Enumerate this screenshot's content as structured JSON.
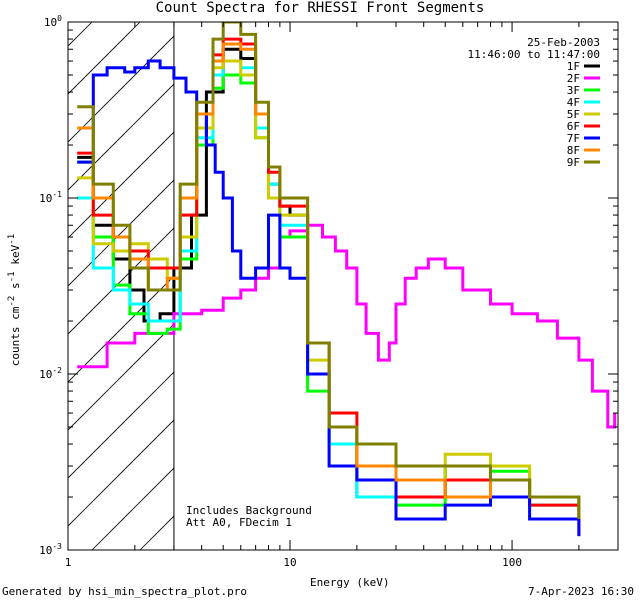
{
  "footer": {
    "generator": "Generated by hsi_min_spectra_plot.pro",
    "timestamp": "7-Apr-2023 16:30"
  },
  "chart_data": {
    "type": "line",
    "title": "Count Spectra for RHESSI Front Segments",
    "date": "25-Feb-2003",
    "time_range": "11:46:00 to 11:47:00",
    "xlabel": "Energy (keV)",
    "ylabel": "counts cm^-2 s^-1 keV^-1",
    "xscale": "log",
    "yscale": "log",
    "xlim": [
      1,
      300
    ],
    "ylim": [
      0.001,
      1
    ],
    "xticks": [
      {
        "v": 1,
        "label": "1"
      },
      {
        "v": 10,
        "label": "10"
      },
      {
        "v": 100,
        "label": "100"
      }
    ],
    "yticks": [
      {
        "v": 0.001,
        "label": "10^-3"
      },
      {
        "v": 0.01,
        "label": "10^-2"
      },
      {
        "v": 0.1,
        "label": "10^-1"
      },
      {
        "v": 1,
        "label": "10^0"
      }
    ],
    "shaded_region": {
      "from": 1,
      "to": 3,
      "style": "hatched"
    },
    "notes": [
      "Includes Background",
      "Att A0, FDecim 1"
    ],
    "legend_position": "top-right",
    "series": [
      {
        "name": "1F",
        "color": "#000000",
        "points": [
          [
            1.1,
            0.17
          ],
          [
            1.3,
            0.07
          ],
          [
            1.6,
            0.045
          ],
          [
            1.9,
            0.03
          ],
          [
            2.2,
            0.02
          ],
          [
            2.6,
            0.022
          ],
          [
            3.0,
            0.04
          ],
          [
            3.6,
            0.08
          ],
          [
            4.2,
            0.4
          ],
          [
            5,
            0.7
          ],
          [
            6,
            0.62
          ],
          [
            7,
            0.3
          ],
          [
            8,
            0.12
          ],
          [
            9,
            0.09
          ],
          [
            10,
            0.08
          ],
          [
            12,
            0.015
          ],
          [
            15,
            0.005
          ],
          [
            20,
            0.002
          ],
          [
            30,
            0.003
          ],
          [
            50,
            0.002
          ],
          [
            80,
            0.0025
          ],
          [
            120,
            0.002
          ],
          [
            200,
            0.0015
          ]
        ]
      },
      {
        "name": "2F",
        "color": "#ff00ff",
        "points": [
          [
            1.1,
            0.011
          ],
          [
            1.3,
            0.011
          ],
          [
            1.5,
            0.015
          ],
          [
            2,
            0.017
          ],
          [
            3,
            0.022
          ],
          [
            4,
            0.023
          ],
          [
            5,
            0.027
          ],
          [
            6,
            0.03
          ],
          [
            7,
            0.035
          ],
          [
            8,
            0.04
          ],
          [
            9,
            0.06
          ],
          [
            10,
            0.065
          ],
          [
            12,
            0.07
          ],
          [
            14,
            0.06
          ],
          [
            16,
            0.05
          ],
          [
            18,
            0.04
          ],
          [
            20,
            0.025
          ],
          [
            22,
            0.017
          ],
          [
            25,
            0.012
          ],
          [
            28,
            0.015
          ],
          [
            30,
            0.025
          ],
          [
            33,
            0.035
          ],
          [
            37,
            0.04
          ],
          [
            42,
            0.045
          ],
          [
            50,
            0.04
          ],
          [
            60,
            0.03
          ],
          [
            80,
            0.025
          ],
          [
            100,
            0.022
          ],
          [
            130,
            0.02
          ],
          [
            160,
            0.016
          ],
          [
            200,
            0.012
          ],
          [
            230,
            0.008
          ],
          [
            270,
            0.005
          ],
          [
            290,
            0.006
          ]
        ]
      },
      {
        "name": "3F",
        "color": "#00ff00",
        "points": [
          [
            1.1,
            0.16
          ],
          [
            1.3,
            0.06
          ],
          [
            1.6,
            0.032
          ],
          [
            1.9,
            0.022
          ],
          [
            2.3,
            0.017
          ],
          [
            2.8,
            0.018
          ],
          [
            3.2,
            0.045
          ],
          [
            3.8,
            0.2
          ],
          [
            4.5,
            0.42
          ],
          [
            5,
            0.5
          ],
          [
            6,
            0.45
          ],
          [
            7,
            0.22
          ],
          [
            8,
            0.1
          ],
          [
            9,
            0.06
          ],
          [
            10,
            0.06
          ],
          [
            12,
            0.008
          ],
          [
            15,
            0.004
          ],
          [
            20,
            0.002
          ],
          [
            30,
            0.0018
          ],
          [
            50,
            0.003
          ],
          [
            80,
            0.0028
          ],
          [
            120,
            0.002
          ],
          [
            200,
            0.0018
          ]
        ]
      },
      {
        "name": "4F",
        "color": "#00ffff",
        "points": [
          [
            1.1,
            0.1
          ],
          [
            1.3,
            0.04
          ],
          [
            1.6,
            0.03
          ],
          [
            1.9,
            0.025
          ],
          [
            2.3,
            0.02
          ],
          [
            2.8,
            0.02
          ],
          [
            3.2,
            0.05
          ],
          [
            3.8,
            0.22
          ],
          [
            4.5,
            0.5
          ],
          [
            5,
            0.6
          ],
          [
            6,
            0.55
          ],
          [
            7,
            0.25
          ],
          [
            8,
            0.12
          ],
          [
            9,
            0.07
          ],
          [
            10,
            0.07
          ],
          [
            12,
            0.01
          ],
          [
            15,
            0.004
          ],
          [
            20,
            0.002
          ],
          [
            30,
            0.0025
          ],
          [
            50,
            0.003
          ],
          [
            80,
            0.002
          ],
          [
            120,
            0.0018
          ],
          [
            200,
            0.0015
          ]
        ]
      },
      {
        "name": "5F",
        "color": "#cccc00",
        "points": [
          [
            1.1,
            0.13
          ],
          [
            1.3,
            0.055
          ],
          [
            1.6,
            0.05
          ],
          [
            1.9,
            0.055
          ],
          [
            2.3,
            0.045
          ],
          [
            2.8,
            0.035
          ],
          [
            3.2,
            0.06
          ],
          [
            3.8,
            0.25
          ],
          [
            4.5,
            0.55
          ],
          [
            5,
            0.6
          ],
          [
            6,
            0.5
          ],
          [
            7,
            0.22
          ],
          [
            8,
            0.1
          ],
          [
            9,
            0.08
          ],
          [
            10,
            0.08
          ],
          [
            12,
            0.012
          ],
          [
            15,
            0.005
          ],
          [
            20,
            0.003
          ],
          [
            30,
            0.0025
          ],
          [
            50,
            0.0035
          ],
          [
            80,
            0.003
          ],
          [
            120,
            0.002
          ],
          [
            200,
            0.0015
          ]
        ]
      },
      {
        "name": "6F",
        "color": "#ff0000",
        "points": [
          [
            1.1,
            0.18
          ],
          [
            1.3,
            0.08
          ],
          [
            1.6,
            0.06
          ],
          [
            1.9,
            0.05
          ],
          [
            2.3,
            0.04
          ],
          [
            2.8,
            0.04
          ],
          [
            3.2,
            0.08
          ],
          [
            3.8,
            0.3
          ],
          [
            4.5,
            0.65
          ],
          [
            5,
            0.8
          ],
          [
            6,
            0.75
          ],
          [
            7,
            0.3
          ],
          [
            8,
            0.14
          ],
          [
            9,
            0.09
          ],
          [
            10,
            0.09
          ],
          [
            12,
            0.015
          ],
          [
            15,
            0.006
          ],
          [
            20,
            0.003
          ],
          [
            30,
            0.002
          ],
          [
            50,
            0.0025
          ],
          [
            80,
            0.002
          ],
          [
            120,
            0.0018
          ],
          [
            200,
            0.0012
          ]
        ]
      },
      {
        "name": "7F",
        "color": "#0000ff",
        "points": [
          [
            1.1,
            0.16
          ],
          [
            1.3,
            0.5
          ],
          [
            1.5,
            0.55
          ],
          [
            1.8,
            0.52
          ],
          [
            2,
            0.55
          ],
          [
            2.3,
            0.6
          ],
          [
            2.6,
            0.55
          ],
          [
            3,
            0.48
          ],
          [
            3.4,
            0.4
          ],
          [
            3.8,
            0.3
          ],
          [
            4.2,
            0.2
          ],
          [
            4.6,
            0.14
          ],
          [
            5,
            0.1
          ],
          [
            5.5,
            0.05
          ],
          [
            6,
            0.035
          ],
          [
            7,
            0.04
          ],
          [
            8,
            0.08
          ],
          [
            9,
            0.04
          ],
          [
            10,
            0.035
          ],
          [
            12,
            0.01
          ],
          [
            15,
            0.003
          ],
          [
            20,
            0.0025
          ],
          [
            30,
            0.0015
          ],
          [
            50,
            0.0018
          ],
          [
            80,
            0.002
          ],
          [
            120,
            0.0015
          ],
          [
            200,
            0.0012
          ]
        ]
      },
      {
        "name": "8F",
        "color": "#ff8800",
        "points": [
          [
            1.1,
            0.25
          ],
          [
            1.3,
            0.1
          ],
          [
            1.6,
            0.06
          ],
          [
            1.9,
            0.045
          ],
          [
            2.3,
            0.03
          ],
          [
            2.8,
            0.035
          ],
          [
            3.2,
            0.1
          ],
          [
            3.8,
            0.3
          ],
          [
            4.5,
            0.6
          ],
          [
            5,
            0.75
          ],
          [
            6,
            0.7
          ],
          [
            7,
            0.3
          ],
          [
            8,
            0.15
          ],
          [
            9,
            0.1
          ],
          [
            10,
            0.1
          ],
          [
            12,
            0.015
          ],
          [
            15,
            0.005
          ],
          [
            20,
            0.003
          ],
          [
            30,
            0.0025
          ],
          [
            50,
            0.002
          ],
          [
            80,
            0.0025
          ],
          [
            120,
            0.002
          ],
          [
            200,
            0.0015
          ]
        ]
      },
      {
        "name": "9F",
        "color": "#808000",
        "points": [
          [
            1.1,
            0.33
          ],
          [
            1.3,
            0.12
          ],
          [
            1.6,
            0.07
          ],
          [
            1.9,
            0.04
          ],
          [
            2.3,
            0.03
          ],
          [
            2.8,
            0.03
          ],
          [
            3.2,
            0.12
          ],
          [
            3.8,
            0.35
          ],
          [
            4.5,
            0.8
          ],
          [
            5,
            1.0
          ],
          [
            6,
            0.85
          ],
          [
            7,
            0.35
          ],
          [
            8,
            0.15
          ],
          [
            9,
            0.1
          ],
          [
            10,
            0.1
          ],
          [
            12,
            0.015
          ],
          [
            15,
            0.005
          ],
          [
            20,
            0.004
          ],
          [
            30,
            0.003
          ],
          [
            50,
            0.003
          ],
          [
            80,
            0.0025
          ],
          [
            120,
            0.002
          ],
          [
            200,
            0.0015
          ]
        ]
      }
    ]
  }
}
